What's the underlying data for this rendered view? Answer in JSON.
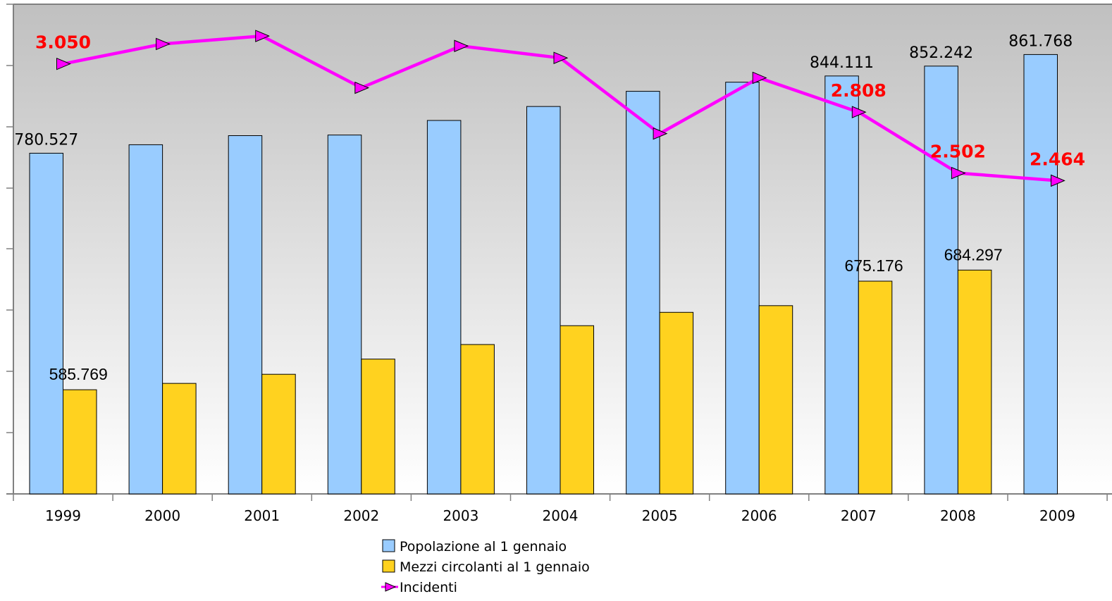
{
  "chart_data": {
    "type": "bar",
    "categories": [
      "1999",
      "2000",
      "2001",
      "2002",
      "2003",
      "2004",
      "2005",
      "2006",
      "2007",
      "2008",
      "2009"
    ],
    "series": [
      {
        "name": "Popolazione al 1 gennaio",
        "kind": "bar",
        "color": "#99ccff",
        "values": [
          780527,
          787500,
          795000,
          795500,
          807500,
          819000,
          831500,
          839000,
          844111,
          852242,
          861768
        ],
        "labels": [
          "780.527",
          "",
          "",
          "",
          "",
          "",
          "",
          "",
          "844.111",
          "852.242",
          "861.768"
        ]
      },
      {
        "name": "Mezzi circolanti al 1 gennaio",
        "kind": "bar",
        "color": "#ffd21f",
        "values": [
          585769,
          591000,
          598500,
          611000,
          623000,
          638500,
          649500,
          655000,
          675176,
          684297,
          null
        ],
        "labels": [
          "585.769",
          "",
          "",
          "",
          "",
          "",
          "",
          "",
          "675.176",
          "684.297",
          ""
        ]
      },
      {
        "name": "Incidenti",
        "kind": "line",
        "color": "#ff00ff",
        "values": [
          3050,
          3150,
          3190,
          2930,
          3140,
          3080,
          2700,
          2980,
          2808,
          2502,
          2464
        ],
        "labels": [
          "3.050",
          "",
          "",
          "",
          "",
          "",
          "",
          "",
          "2.808",
          "2.502",
          "2.464"
        ]
      }
    ],
    "bar_axis": {
      "ylim": [
        500000,
        900000
      ]
    },
    "line_axis": {
      "ylim": [
        0,
        3300
      ]
    },
    "grid": false,
    "legend": "bottom",
    "colors": {
      "plot_top": "#c0c0c0",
      "plot_bottom": "#ffffff",
      "axis": "#808080"
    }
  }
}
